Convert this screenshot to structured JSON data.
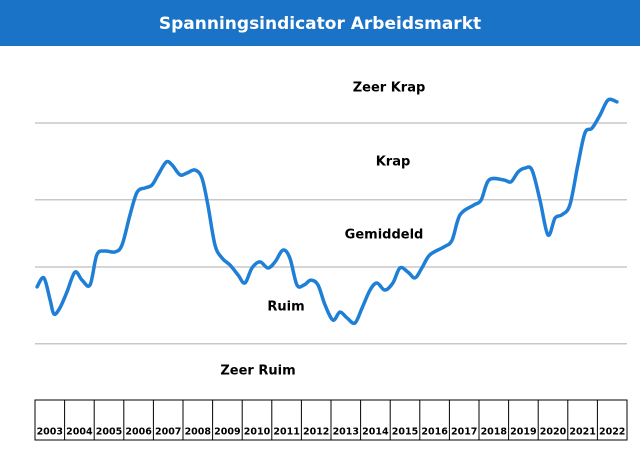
{
  "chart_data": {
    "type": "line",
    "title": "Spanningsindicator Arbeidsmarkt",
    "annotations": [
      "Zeer Krap",
      "Krap",
      "Gemiddeld",
      "Ruim",
      "Zeer Ruim"
    ],
    "categories": [
      "2003",
      "2004",
      "2005",
      "2006",
      "2007",
      "2008",
      "2009",
      "2010",
      "2011",
      "2012",
      "2013",
      "2014",
      "2015",
      "2016",
      "2017",
      "2018",
      "2019",
      "2020",
      "2021",
      "2022"
    ],
    "xlim": [
      2003,
      2023
    ],
    "ylim": [
      0,
      100
    ],
    "yticks": [
      85,
      61,
      40,
      16
    ],
    "grid": true,
    "series": [
      {
        "color": "#1f7fd6",
        "x": [
          2003.07,
          2003.3,
          2003.51,
          2003.64,
          2003.84,
          2004.08,
          2004.35,
          2004.59,
          2004.86,
          2005.09,
          2005.36,
          2005.7,
          2005.94,
          2006.21,
          2006.45,
          2006.72,
          2006.95,
          2007.16,
          2007.43,
          2007.63,
          2007.9,
          2008.14,
          2008.41,
          2008.64,
          2008.84,
          2009.08,
          2009.32,
          2009.59,
          2009.86,
          2010.09,
          2010.33,
          2010.6,
          2010.87,
          2011.11,
          2011.38,
          2011.61,
          2011.85,
          2012.09,
          2012.32,
          2012.56,
          2012.8,
          2013.07,
          2013.3,
          2013.54,
          2013.81,
          2014.05,
          2014.32,
          2014.55,
          2014.82,
          2015.09,
          2015.33,
          2015.6,
          2015.84,
          2016.07,
          2016.34,
          2016.82,
          2017.09,
          2017.36,
          2017.83,
          2018.07,
          2018.34,
          2018.84,
          2019.08,
          2019.32,
          2019.55,
          2019.79,
          2020.06,
          2020.33,
          2020.57,
          2020.8,
          2021.07,
          2021.34,
          2021.58,
          2021.82,
          2022.09,
          2022.36,
          2022.66
        ],
        "values": [
          33.8,
          36.6,
          29.7,
          25.3,
          27.2,
          32.2,
          38.4,
          35.9,
          34.4,
          43.8,
          45,
          44.7,
          46.9,
          56.3,
          63.4,
          64.7,
          65.6,
          68.8,
          72.8,
          71.9,
          68.8,
          69.4,
          70.3,
          67.8,
          59.4,
          46.9,
          42.8,
          40.6,
          37.5,
          35,
          39.7,
          41.6,
          39.7,
          41.6,
          45.3,
          42.8,
          34.4,
          34.4,
          35.9,
          34.4,
          28.1,
          23.4,
          25.9,
          24.1,
          22.5,
          27.2,
          32.8,
          35,
          32.8,
          35,
          39.7,
          38.4,
          36.6,
          39.7,
          43.8,
          46.3,
          48.4,
          56.3,
          59.4,
          60.9,
          67.2,
          67.2,
          66.6,
          69.7,
          70.9,
          70.3,
          60.9,
          50,
          55.3,
          56.3,
          59.4,
          71.9,
          81.9,
          83.4,
          87.5,
          92.2,
          91.6
        ]
      }
    ]
  }
}
